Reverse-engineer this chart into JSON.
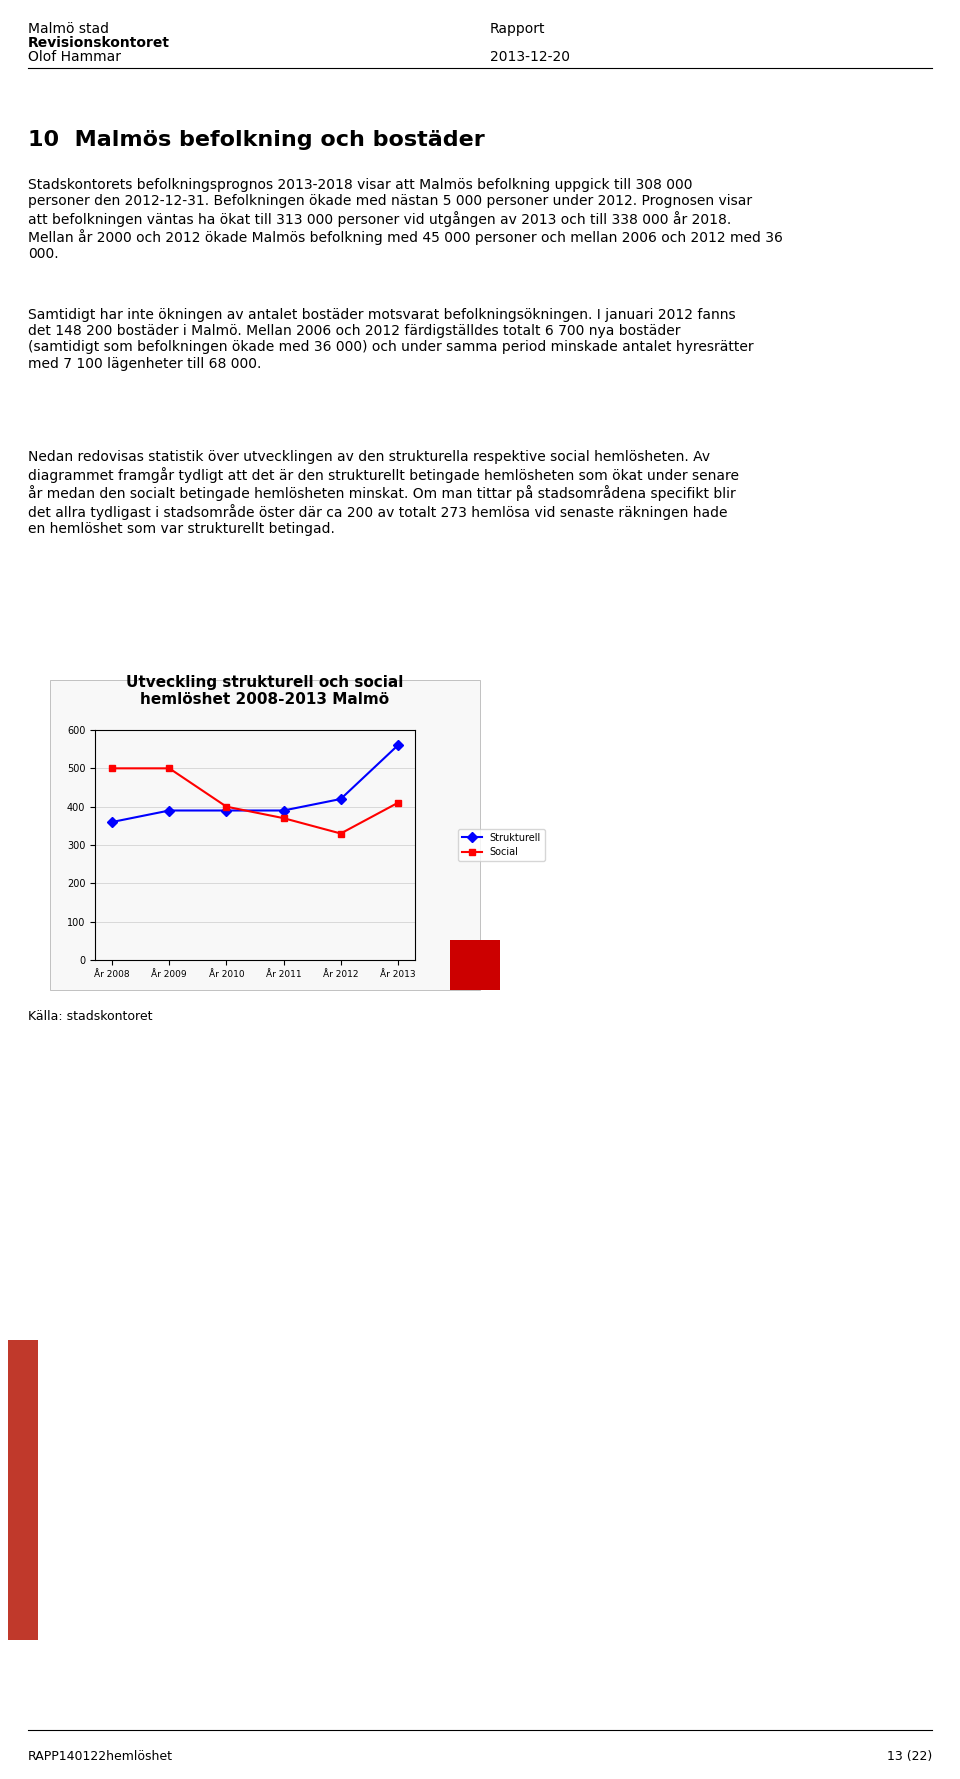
{
  "header_left_line1": "Malmö stad",
  "header_left_line2": "Revisionskontoret",
  "header_left_line3": "Olof Hammar",
  "header_right_line1": "Rapport",
  "header_right_line2": "",
  "header_right_line3": "2013-12-20",
  "section_title": "10  Malmös befolkning och bostäder",
  "para1": "Stadskontorets befolkningsprognos 2013-2018 visar att Malmös befolkning uppgick till 308 000 personer den 2012-12-31. Befolkningen ökade med nästan 5 000 personer under 2012. Prognosen visar att befolkningen väntas ha ökat till 313 000 personer vid utgången av 2013 och till 338 000 år 2018. Mellan år 2000 och 2012 ökade Malmös befolkning med 45 000 personer och mellan 2006 och 2012 med 36 000.",
  "para2": "Samtidigt har inte ökningen av antalet bostäder motsvarat befolkningsökningen. I januari 2012 fanns det 148 200 bostäder i Malmö. Mellan 2006 och 2012 färdigställdes totalt 6 700 nya bostäder (samtidigt som befolkningen ökade med 36 000) och under samma period minskade antalet hyresrätter med 7 100 lägenheter till 68 000.",
  "para3": "Nedan redovisas statistik över utvecklingen av den strukturella respektive social hemlösheten. Av diagrammet framgår tydligt att det är den strukturellt betingade hemlösheten som ökat under senare år medan den socialt betingade hemlösheten minskat. Om man tittar på stadsområdena specifikt blir det allra tydligast i stadsområde öster där ca 200 av totalt 273 hemlösa vid senaste räkningen hade en hemlöshet som var strukturellt betingad.",
  "chart_title_line1": "Utveckling strukturell och social",
  "chart_title_line2": "hemlöshet 2008-2013 Malmö",
  "x_labels": [
    "År 2008",
    "År 2009",
    "År 2010",
    "År 2011",
    "År 2012",
    "År 2013"
  ],
  "strukturell_values": [
    360,
    390,
    390,
    390,
    420,
    560
  ],
  "social_values": [
    500,
    500,
    400,
    370,
    330,
    410
  ],
  "y_min": 0,
  "y_max": 600,
  "y_ticks": [
    0,
    100,
    200,
    300,
    400,
    500,
    600
  ],
  "strukturell_color": "#0000ff",
  "social_color": "#ff0000",
  "legend_strukturell": "Strukturell",
  "legend_social": "Social",
  "caption": "Källa: stadskontoret",
  "footer_left": "RAPP140122hemlöshet",
  "footer_right": "13 (22)",
  "background_color": "#ffffff",
  "text_color": "#000000",
  "chart_bg": "#ffffff",
  "left_margin_color": "#c0392b",
  "sidebar_color": "#c0392b"
}
